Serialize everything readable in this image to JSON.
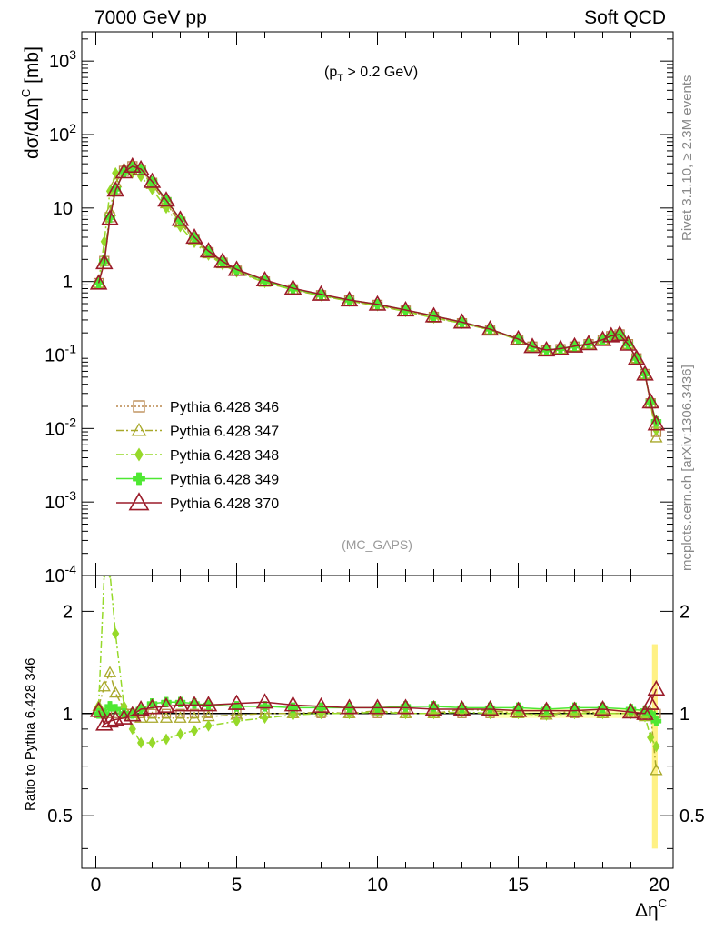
{
  "header": {
    "left": "7000 GeV pp",
    "right": "Soft QCD"
  },
  "side": {
    "top": "Rivet 3.1.10, ≥ 2.3M events",
    "bottom": "mcplots.cern.ch [arXiv:1306.3436]"
  },
  "annotation": {
    "pt_cut_pre": "(p",
    "pt_cut_sub": "T",
    "pt_cut_post": " > 0.2 GeV)",
    "analysis": "(MC_GAPS)"
  },
  "axes": {
    "ylabel_main": "dσ/dΔη",
    "ylabel_main_sup": "C",
    "ylabel_main_unit": " [mb]",
    "ylabel_ratio": "Ratio to Pythia 6.428 346",
    "xlabel": "Δη",
    "xlabel_sup": "C",
    "main_yticks": [
      {
        "base": "10",
        "exp": "-4"
      },
      {
        "base": "10",
        "exp": "-3"
      },
      {
        "base": "10",
        "exp": "-2"
      },
      {
        "base": "10",
        "exp": "-1"
      },
      {
        "base": "1",
        "exp": ""
      },
      {
        "base": "10",
        "exp": ""
      },
      {
        "base": "10",
        "exp": "2"
      },
      {
        "base": "10",
        "exp": "3"
      }
    ],
    "ratio_yticks": [
      "0.5",
      "1",
      "2"
    ],
    "xticks": [
      "0",
      "5",
      "10",
      "15",
      "20"
    ]
  },
  "legend": [
    {
      "label": "Pythia 6.428 346",
      "color": "#b8864b",
      "marker": "square",
      "dash": "2,2"
    },
    {
      "label": "Pythia 6.428 347",
      "color": "#a8a82a",
      "marker": "triangle",
      "dash": "8,3,2,3"
    },
    {
      "label": "Pythia 6.428 348",
      "color": "#96d92a",
      "marker": "diamond",
      "dash": "8,3,2,3"
    },
    {
      "label": "Pythia 6.428 349",
      "color": "#4ee832",
      "marker": "cross",
      "dash": ""
    },
    {
      "label": "Pythia 6.428 370",
      "color": "#9b1c2a",
      "marker": "triangle-open",
      "dash": ""
    }
  ],
  "chart_data": {
    "type": "line",
    "x_range": [
      -0.5,
      20.5
    ],
    "main": {
      "yscale": "log",
      "ylim": [
        0.0001,
        2500
      ],
      "x": [
        0.1,
        0.3,
        0.5,
        0.7,
        1.0,
        1.3,
        1.6,
        2.0,
        2.5,
        3.0,
        3.5,
        4.0,
        4.5,
        5.0,
        6.0,
        7.0,
        8.0,
        9.0,
        10.0,
        11.0,
        12.0,
        13.0,
        14.0,
        15.0,
        15.5,
        16.0,
        16.5,
        17.0,
        17.5,
        18.0,
        18.3,
        18.6,
        18.9,
        19.2,
        19.5,
        19.7,
        19.9
      ],
      "series": [
        {
          "name": "Pythia 6.428 346",
          "values": [
            0.95,
            1.9,
            7.5,
            18,
            32,
            37,
            33,
            22,
            12,
            6.5,
            3.8,
            2.5,
            1.8,
            1.4,
            1.0,
            0.78,
            0.65,
            0.55,
            0.48,
            0.4,
            0.33,
            0.27,
            0.22,
            0.16,
            0.13,
            0.115,
            0.12,
            0.13,
            0.14,
            0.16,
            0.18,
            0.19,
            0.14,
            0.09,
            0.055,
            0.022,
            0.009
          ]
        },
        {
          "name": "Pythia 6.428 347",
          "values": [
            0.95,
            2.0,
            9,
            22,
            34,
            37,
            32,
            21,
            11.5,
            6.3,
            3.7,
            2.4,
            1.75,
            1.38,
            0.98,
            0.77,
            0.64,
            0.54,
            0.47,
            0.39,
            0.32,
            0.27,
            0.22,
            0.16,
            0.13,
            0.115,
            0.12,
            0.13,
            0.14,
            0.16,
            0.18,
            0.19,
            0.14,
            0.09,
            0.055,
            0.022,
            0.0075
          ]
        },
        {
          "name": "Pythia 6.428 348",
          "values": [
            1.0,
            3.5,
            17,
            30,
            30,
            30,
            27,
            18,
            10,
            5.6,
            3.4,
            2.3,
            1.7,
            1.35,
            0.97,
            0.77,
            0.64,
            0.54,
            0.47,
            0.39,
            0.32,
            0.27,
            0.22,
            0.16,
            0.13,
            0.115,
            0.12,
            0.13,
            0.14,
            0.16,
            0.18,
            0.19,
            0.14,
            0.09,
            0.055,
            0.022,
            0.0095
          ]
        },
        {
          "name": "Pythia 6.428 349",
          "values": [
            0.95,
            1.9,
            7.4,
            18,
            31,
            36,
            34,
            23,
            13,
            7.0,
            4.0,
            2.6,
            1.85,
            1.45,
            1.02,
            0.8,
            0.66,
            0.56,
            0.49,
            0.41,
            0.34,
            0.28,
            0.225,
            0.165,
            0.13,
            0.117,
            0.122,
            0.132,
            0.142,
            0.162,
            0.182,
            0.19,
            0.14,
            0.09,
            0.055,
            0.023,
            0.0125
          ]
        },
        {
          "name": "Pythia 6.428 370",
          "values": [
            0.95,
            1.8,
            7.2,
            17.5,
            31,
            37,
            34,
            23,
            12.8,
            7.0,
            4.0,
            2.6,
            1.88,
            1.46,
            1.05,
            0.81,
            0.67,
            0.56,
            0.49,
            0.41,
            0.34,
            0.28,
            0.225,
            0.165,
            0.13,
            0.117,
            0.122,
            0.132,
            0.142,
            0.162,
            0.182,
            0.19,
            0.14,
            0.09,
            0.055,
            0.023,
            0.0115
          ]
        }
      ]
    },
    "ratio": {
      "yscale": "log",
      "ylim": [
        0.35,
        2.55
      ],
      "reference": 1,
      "x": [
        0.1,
        0.3,
        0.5,
        0.7,
        1.0,
        1.3,
        1.6,
        2.0,
        2.5,
        3.0,
        3.5,
        4.0,
        5.0,
        6.0,
        7.0,
        8.0,
        9.0,
        10.0,
        11.0,
        12.0,
        13.0,
        14.0,
        15.0,
        16.0,
        17.0,
        18.0,
        19.0,
        19.5,
        19.7,
        19.9
      ],
      "series": [
        {
          "name": "Pythia 6.428 347",
          "values": [
            1.05,
            1.2,
            1.32,
            1.15,
            1.03,
            0.98,
            0.97,
            0.97,
            0.97,
            0.97,
            0.97,
            0.98,
            0.99,
            1.0,
            1.0,
            1.01,
            1.0,
            1.02,
            1.0,
            1.0,
            1.03,
            1.02,
            1.0,
            0.99,
            1.02,
            1.0,
            1.0,
            0.98,
            1.0,
            0.68
          ]
        },
        {
          "name": "Pythia 6.428 348",
          "values": [
            1.05,
            2.6,
            2.6,
            1.72,
            1.05,
            0.9,
            0.82,
            0.82,
            0.84,
            0.87,
            0.89,
            0.92,
            0.95,
            0.97,
            0.99,
            1.0,
            1.0,
            1.01,
            1.0,
            1.0,
            1.01,
            1.0,
            1.0,
            0.99,
            1.0,
            1.0,
            1.0,
            0.98,
            0.85,
            0.8
          ]
        },
        {
          "name": "Pythia 6.428 349",
          "values": [
            1.0,
            1.0,
            1.05,
            1.03,
            1.0,
            1.0,
            1.03,
            1.07,
            1.08,
            1.08,
            1.07,
            1.06,
            1.05,
            1.05,
            1.04,
            1.04,
            1.04,
            1.04,
            1.05,
            1.05,
            1.04,
            1.04,
            1.04,
            1.03,
            1.04,
            1.04,
            1.03,
            1.02,
            1.0,
            0.95
          ]
        },
        {
          "name": "Pythia 6.428 370",
          "values": [
            1.02,
            0.93,
            0.95,
            0.96,
            0.97,
            0.99,
            1.03,
            1.04,
            1.05,
            1.06,
            1.06,
            1.06,
            1.07,
            1.08,
            1.06,
            1.05,
            1.04,
            1.04,
            1.04,
            1.03,
            1.03,
            1.03,
            1.02,
            1.02,
            1.02,
            1.03,
            1.01,
            1.0,
            1.07,
            1.18
          ]
        }
      ]
    }
  }
}
